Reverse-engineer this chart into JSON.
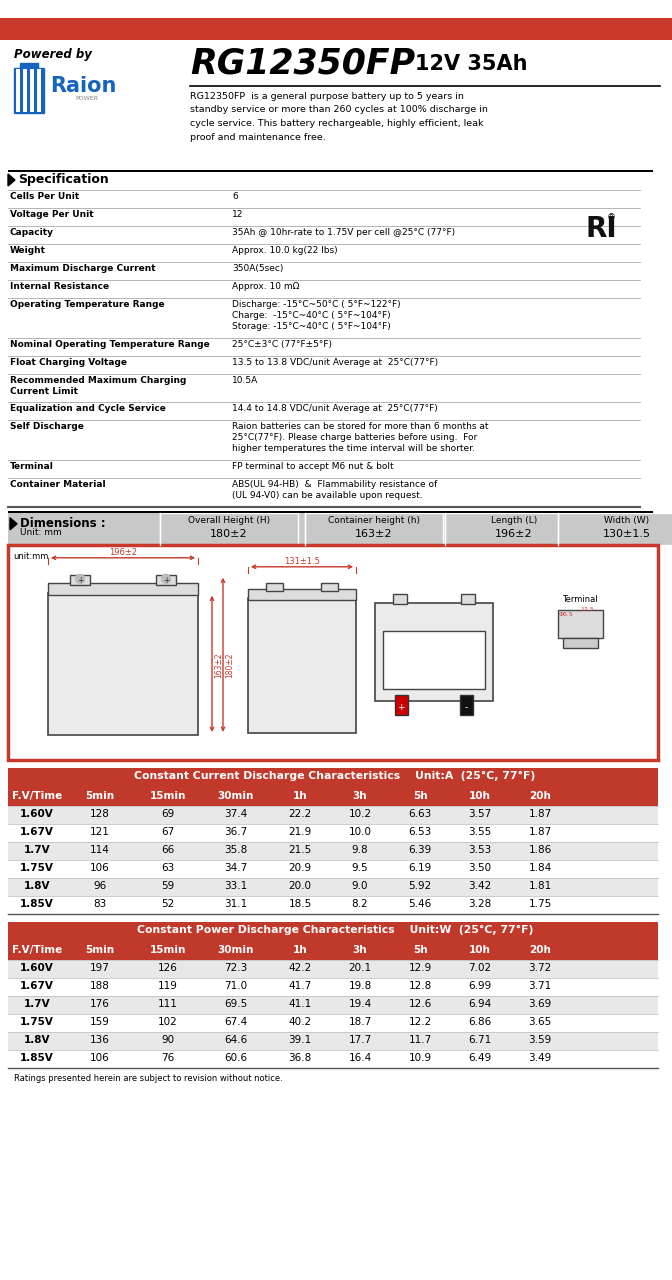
{
  "title_model": "RG12350FP",
  "title_spec": "12V 35Ah",
  "powered_by": "Powered by",
  "description": "RG12350FP  is a general purpose battery up to 5 years in\nstandby service or more than 260 cycles at 100% discharge in\ncycle service. This battery rechargeable, highly efficient, leak\nproof and maintenance free.",
  "spec_title": "Specification",
  "specs": [
    [
      "Cells Per Unit",
      "6"
    ],
    [
      "Voltage Per Unit",
      "12"
    ],
    [
      "Capacity",
      "35Ah @ 10hr-rate to 1.75V per cell @25°C (77°F)"
    ],
    [
      "Weight",
      "Approx. 10.0 kg(22 lbs)"
    ],
    [
      "Maximum Discharge Current",
      "350A(5sec)"
    ],
    [
      "Internal Resistance",
      "Approx. 10 mΩ"
    ],
    [
      "Operating Temperature Range",
      "Discharge: -15°C~50°C ( 5°F~122°F)\nCharge:  -15°C~40°C ( 5°F~104°F)\nStorage: -15°C~40°C ( 5°F~104°F)"
    ],
    [
      "Nominal Operating Temperature Range",
      "25°C±3°C (77°F±5°F)"
    ],
    [
      "Float Charging Voltage",
      "13.5 to 13.8 VDC/unit Average at  25°C(77°F)"
    ],
    [
      "Recommended Maximum Charging\nCurrent Limit",
      "10.5A"
    ],
    [
      "Equalization and Cycle Service",
      "14.4 to 14.8 VDC/unit Average at  25°C(77°F)"
    ],
    [
      "Self Discharge",
      "Raion batteries can be stored for more than 6 months at\n25°C(77°F). Please charge batteries before using.  For\nhigher temperatures the time interval will be shorter."
    ],
    [
      "Terminal",
      "FP terminal to accept M6 nut & bolt"
    ],
    [
      "Container Material",
      "ABS(UL 94-HB)  &  Flammability resistance of\n(UL 94-V0) can be available upon request."
    ]
  ],
  "dim_title": "Dimensions :",
  "dim_unit": "Unit: mm",
  "dim_headers": [
    "Overall Height (H)",
    "Container height (h)",
    "Length (L)",
    "Width (W)"
  ],
  "dim_values": [
    "180±2",
    "163±2",
    "196±2",
    "130±1.5"
  ],
  "cc_table_title": "Constant Current Discharge Characteristics    Unit:A  (25°C, 77°F)",
  "cp_table_title": "Constant Power Discharge Characteristics    Unit:W  (25°C, 77°F)",
  "table_headers": [
    "F.V/Time",
    "5min",
    "15min",
    "30min",
    "1h",
    "3h",
    "5h",
    "10h",
    "20h"
  ],
  "cc_data": [
    [
      "1.60V",
      "128",
      "69",
      "37.4",
      "22.2",
      "10.2",
      "6.63",
      "3.57",
      "1.87"
    ],
    [
      "1.67V",
      "121",
      "67",
      "36.7",
      "21.9",
      "10.0",
      "6.53",
      "3.55",
      "1.87"
    ],
    [
      "1.7V",
      "114",
      "66",
      "35.8",
      "21.5",
      "9.8",
      "6.39",
      "3.53",
      "1.86"
    ],
    [
      "1.75V",
      "106",
      "63",
      "34.7",
      "20.9",
      "9.5",
      "6.19",
      "3.50",
      "1.84"
    ],
    [
      "1.8V",
      "96",
      "59",
      "33.1",
      "20.0",
      "9.0",
      "5.92",
      "3.42",
      "1.81"
    ],
    [
      "1.85V",
      "83",
      "52",
      "31.1",
      "18.5",
      "8.2",
      "5.46",
      "3.28",
      "1.75"
    ]
  ],
  "cp_data": [
    [
      "1.60V",
      "197",
      "126",
      "72.3",
      "42.2",
      "20.1",
      "12.9",
      "7.02",
      "3.72"
    ],
    [
      "1.67V",
      "188",
      "119",
      "71.0",
      "41.7",
      "19.8",
      "12.8",
      "6.99",
      "3.71"
    ],
    [
      "1.7V",
      "176",
      "111",
      "69.5",
      "41.1",
      "19.4",
      "12.6",
      "6.94",
      "3.69"
    ],
    [
      "1.75V",
      "159",
      "102",
      "67.4",
      "40.2",
      "18.7",
      "12.2",
      "6.86",
      "3.65"
    ],
    [
      "1.8V",
      "136",
      "90",
      "64.6",
      "39.1",
      "17.7",
      "11.7",
      "6.71",
      "3.59"
    ],
    [
      "1.85V",
      "106",
      "76",
      "60.6",
      "36.8",
      "16.4",
      "10.9",
      "6.49",
      "3.49"
    ]
  ],
  "footer": "Ratings presented herein are subject to revision without notice.",
  "red_color": "#C8392B",
  "table_header_bg": "#C0392B",
  "table_alt_bg": "#E8E8E8",
  "dim_header_bg": "#C8C8C8"
}
